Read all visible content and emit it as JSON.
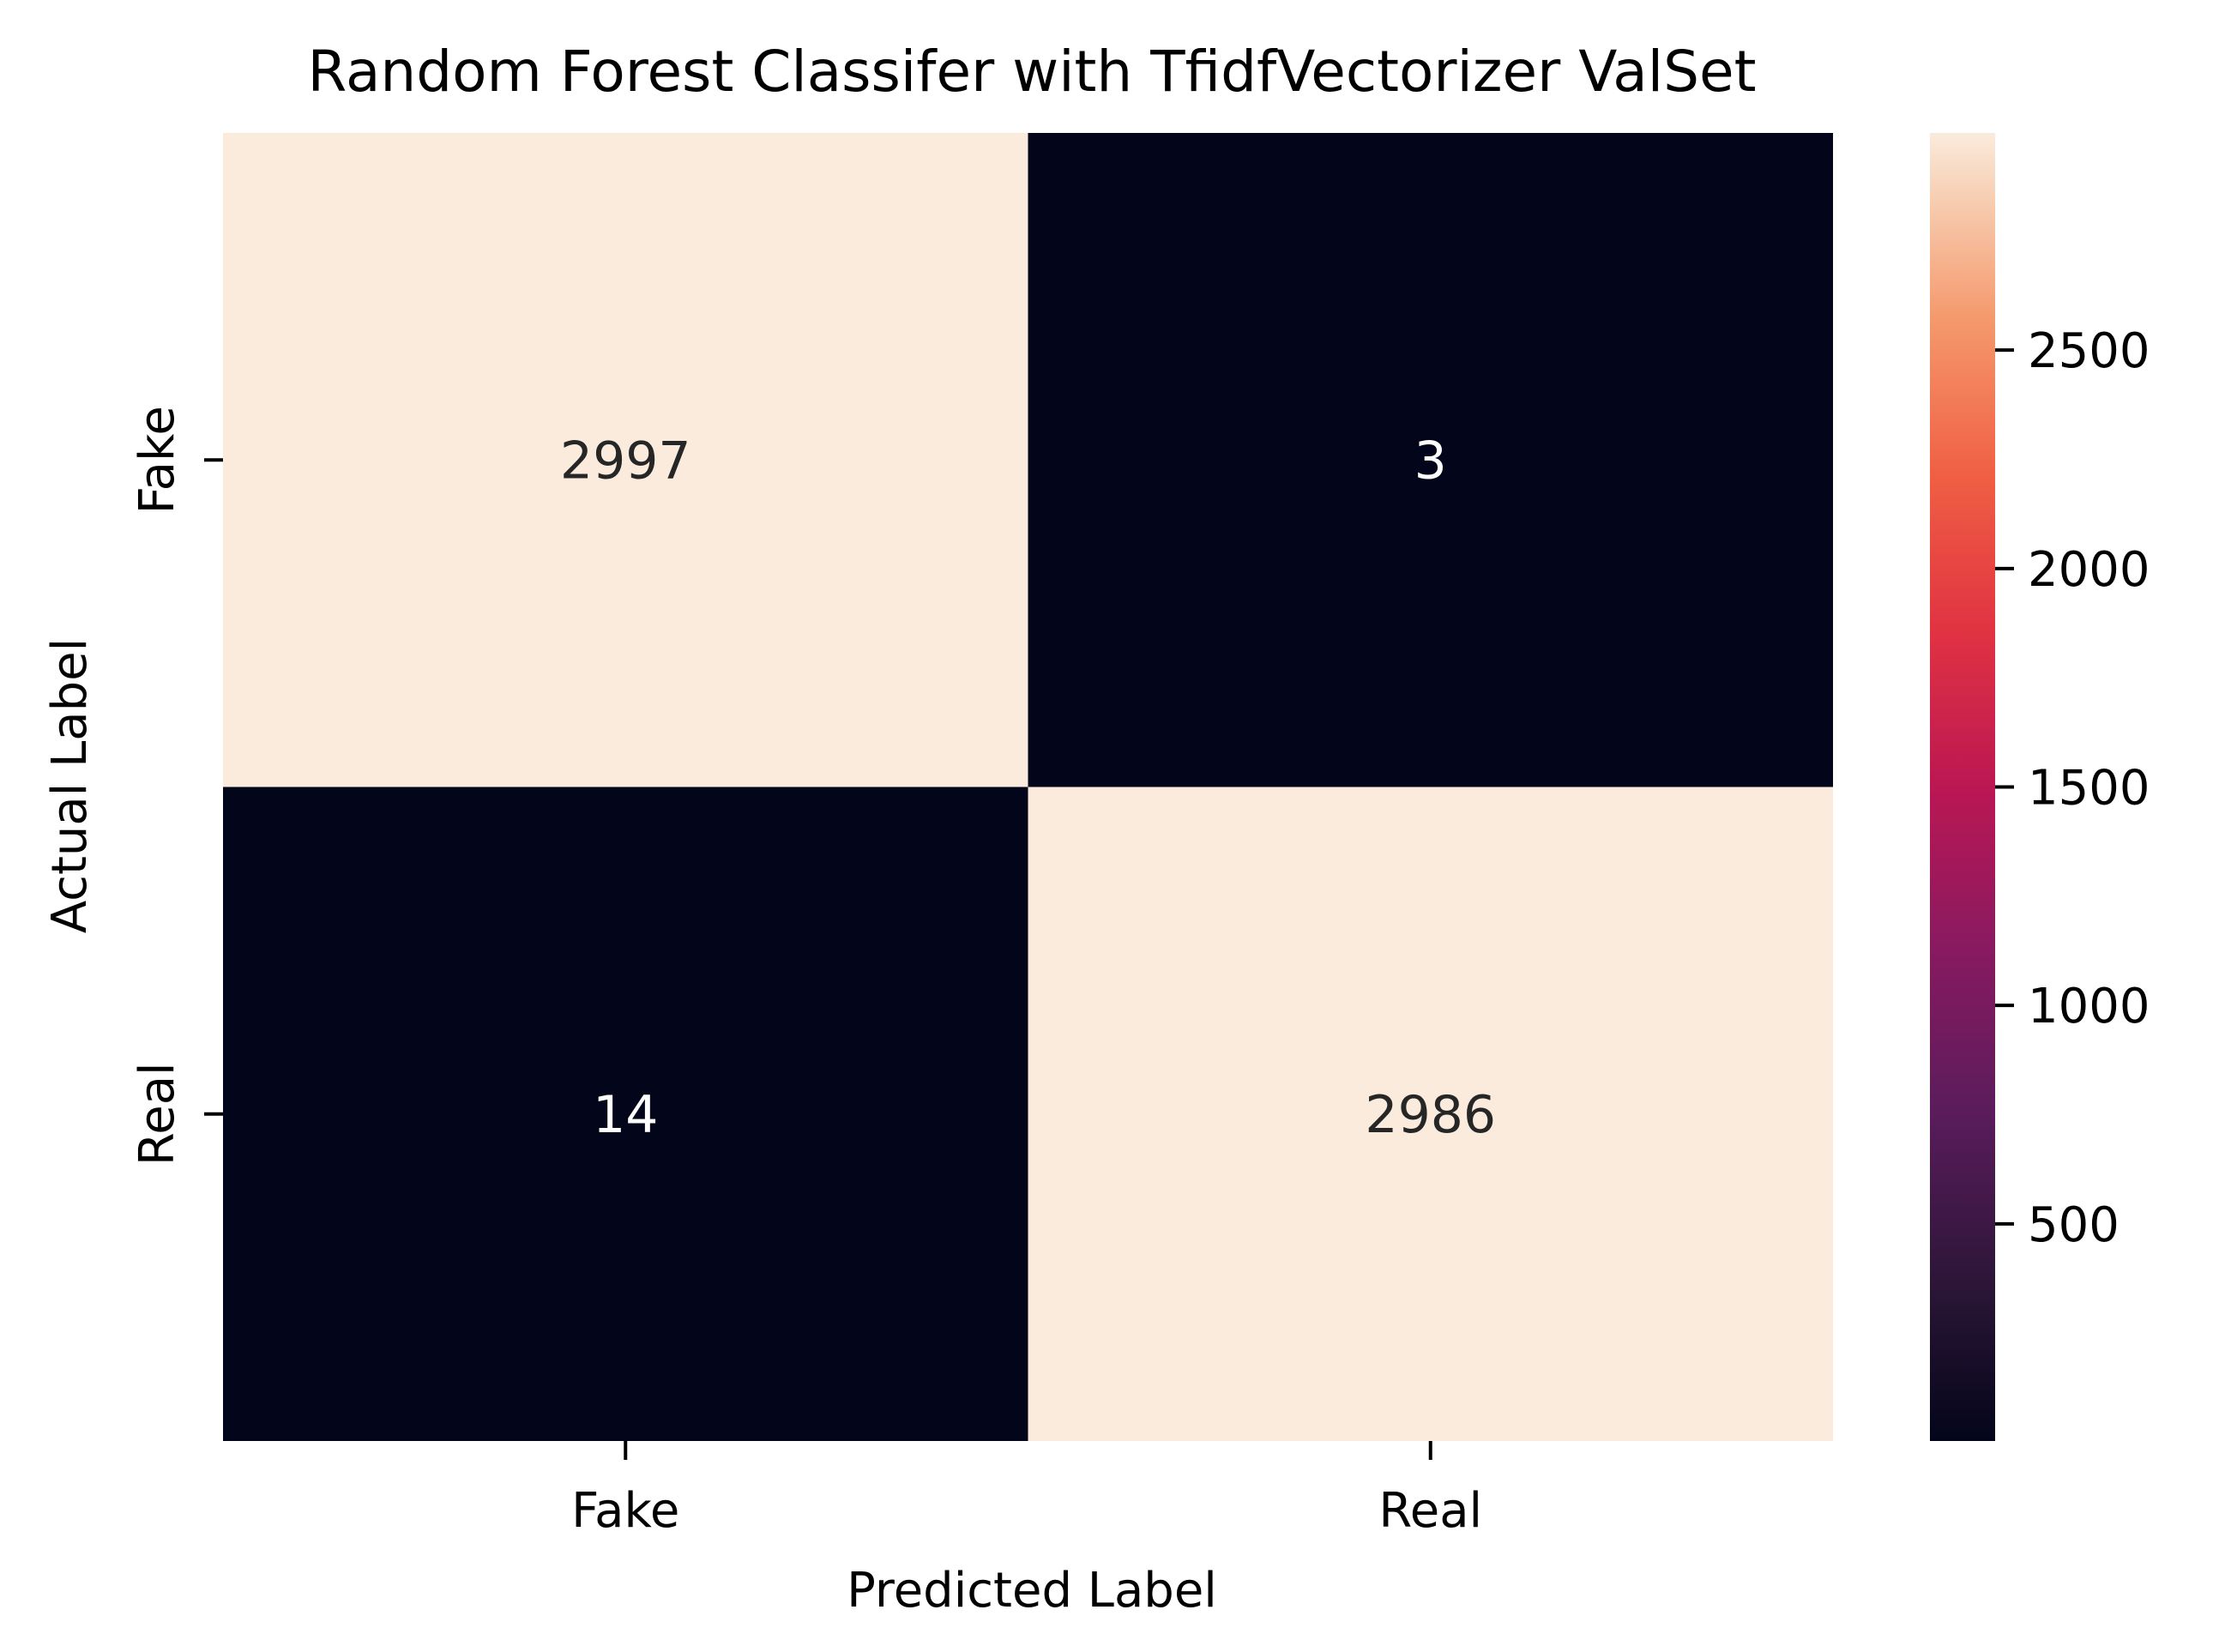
{
  "chart_data": {
    "type": "heatmap",
    "title": "Random Forest Classifer with TfidfVectorizer ValSet",
    "xlabel": "Predicted Label",
    "ylabel": "Actual Label",
    "x_categories": [
      "Fake",
      "Real"
    ],
    "y_categories": [
      "Fake",
      "Real"
    ],
    "matrix": [
      [
        2997,
        3
      ],
      [
        14,
        2986
      ]
    ],
    "colorbar": {
      "colormap": "rocket",
      "range": [
        3,
        2997
      ],
      "ticks": [
        500,
        1000,
        1500,
        2000,
        2500
      ],
      "tick_labels": [
        "500",
        "1000",
        "1500",
        "2000",
        "2500"
      ]
    },
    "colors": {
      "low": "#03051a",
      "high": "#faebdd",
      "text_on_light": "#262626",
      "text_on_dark": "#ffffff"
    }
  }
}
